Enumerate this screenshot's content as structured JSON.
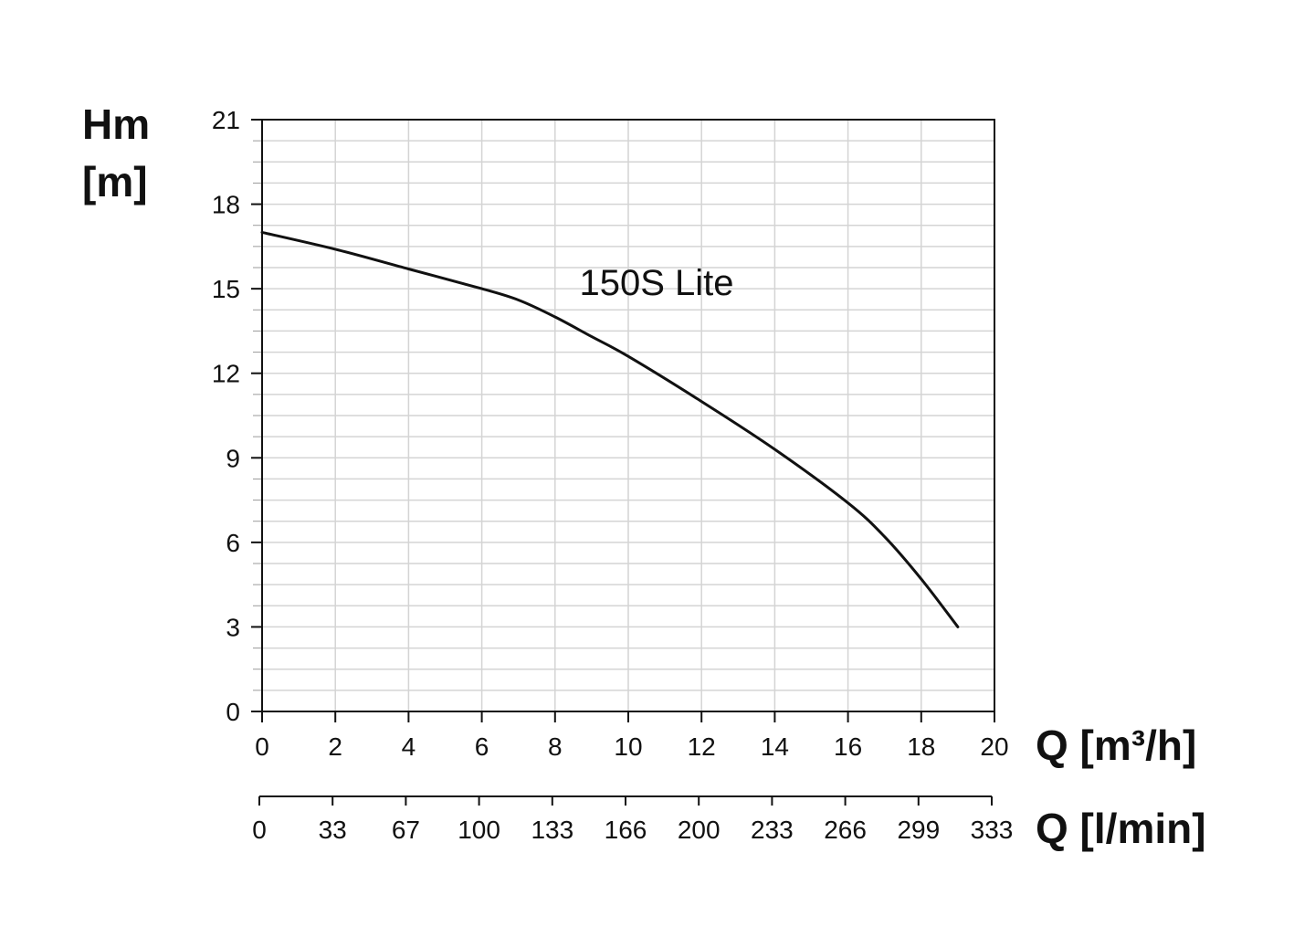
{
  "chart_data": {
    "type": "line",
    "y_title": [
      "Hm",
      "[m]"
    ],
    "x_title": "Q [m³/h]",
    "x2_title": "Q [l/min]",
    "xlim": [
      0,
      20
    ],
    "ylim": [
      0,
      21
    ],
    "x_ticks": [
      "0",
      "2",
      "4",
      "6",
      "8",
      "10",
      "12",
      "14",
      "16",
      "18",
      "20"
    ],
    "x2_ticks": [
      "0",
      "33",
      "67",
      "100",
      "133",
      "166",
      "200",
      "233",
      "266",
      "299",
      "333"
    ],
    "y_ticks": [
      "0",
      "3",
      "6",
      "9",
      "12",
      "15",
      "18",
      "21"
    ],
    "grid": true,
    "series": [
      {
        "name": "150S Lite",
        "x": [
          0,
          2,
          4,
          6,
          7,
          8,
          9,
          10,
          12,
          14,
          16,
          17,
          18,
          19
        ],
        "y": [
          17.0,
          16.4,
          15.7,
          15.0,
          14.6,
          14.0,
          13.3,
          12.6,
          11.0,
          9.3,
          7.4,
          6.2,
          4.7,
          3.0
        ]
      }
    ],
    "annotation": "150S Lite",
    "colors": {
      "line": "#111111",
      "grid": "#d4d4d4",
      "axis": "#111111"
    }
  }
}
